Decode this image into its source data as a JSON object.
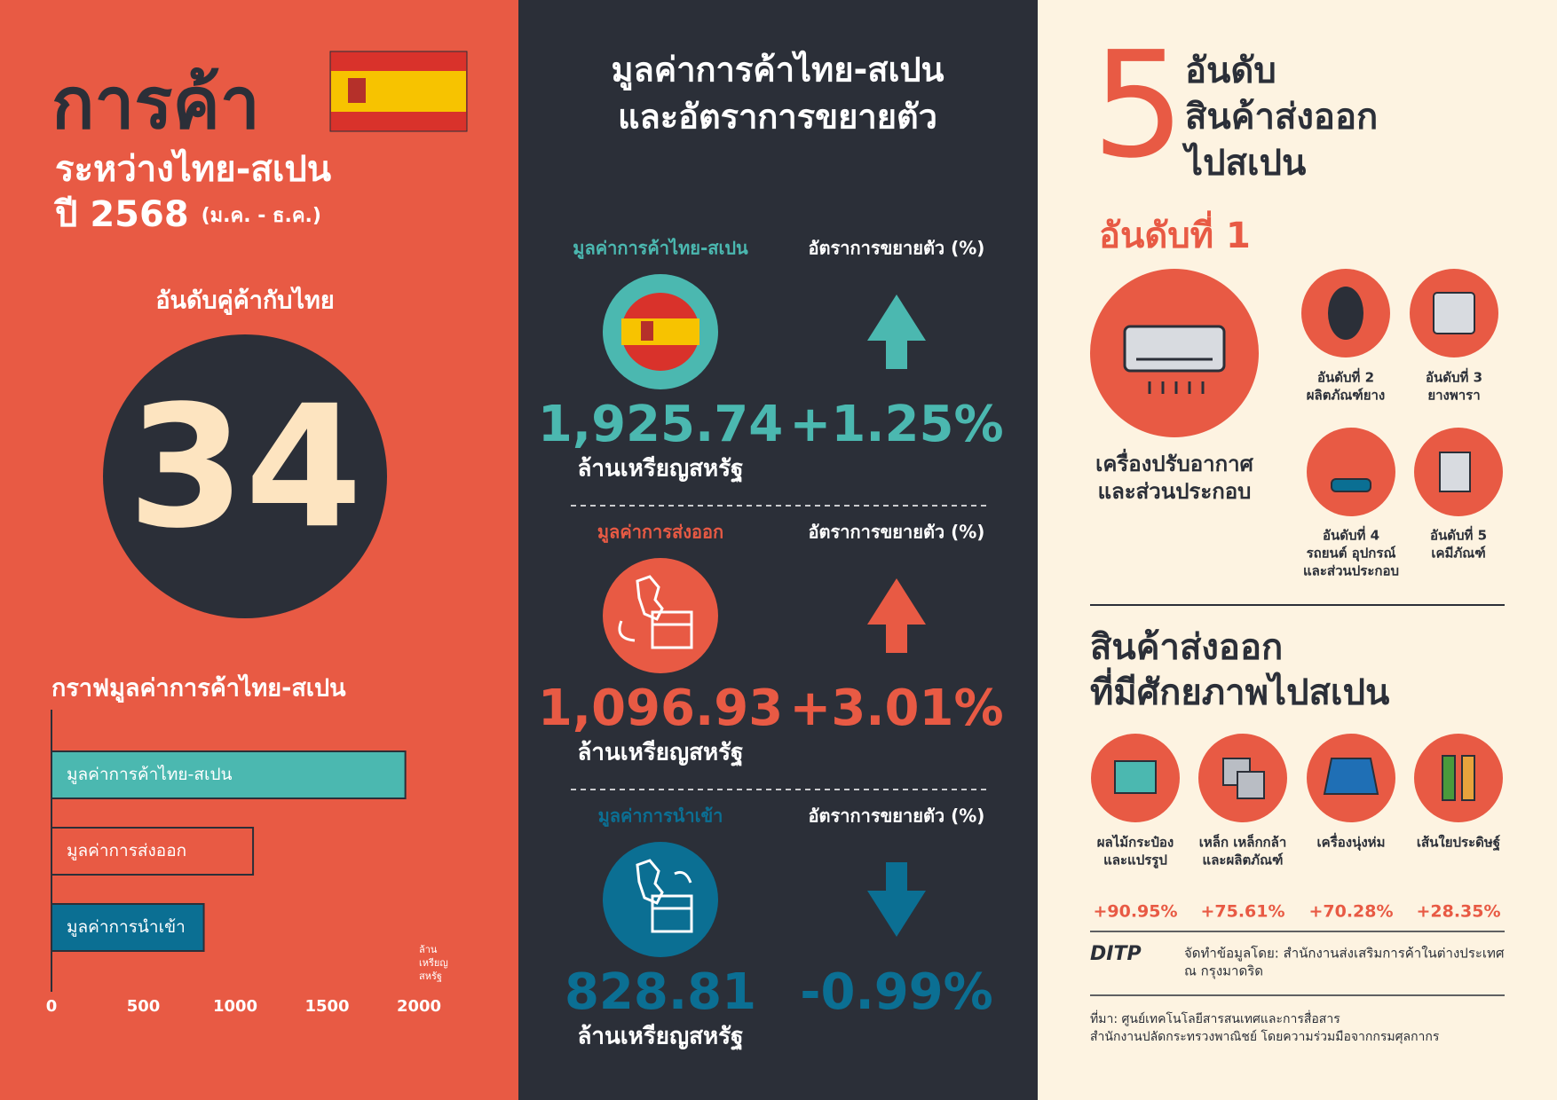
{
  "left": {
    "title": "การค้า",
    "subtitle": "ระหว่างไทย-สเปน",
    "year": "ปี 2568",
    "period": "(ม.ค. - ธ.ค.)",
    "rank_label": "อันดับคู่ค้ากับไทย",
    "rank": 34,
    "chart_data": {
      "type": "bar",
      "title": "กราฟมูลค่าการค้าไทย-สเปน",
      "categories": [
        "มูลค่าการค้าไทย-สเปน",
        "มูลค่าการส่งออก",
        "มูลค่าการนำเข้า"
      ],
      "values": [
        1925.74,
        1096.93,
        828.81
      ],
      "colors": [
        "#4bb8b0",
        "#e85a44",
        "#0b6f93"
      ],
      "xlim": [
        0,
        2000
      ],
      "xticks": [
        0,
        500,
        1000,
        1500,
        2000
      ],
      "unit": [
        "ล้าน",
        "เหรียญ",
        "สหรัฐ"
      ]
    }
  },
  "middle": {
    "title": [
      "มูลค่าการค้าไทย-สเปน",
      "และอัตราการขยายตัว"
    ],
    "sections": [
      {
        "label": "มูลค่าการค้าไทย-สเปน",
        "growth_label": "อัตราการขยายตัว (%)",
        "value": "1,925.74",
        "unit": "ล้านเหรียญสหรัฐ",
        "growth": "+1.25%"
      },
      {
        "label": "มูลค่าการส่งออก",
        "growth_label": "อัตราการขยายตัว (%)",
        "value": "1,096.93",
        "unit": "ล้านเหรียญสหรัฐ",
        "growth": "+3.01%"
      },
      {
        "label": "มูลค่าการนำเข้า",
        "growth_label": "อัตราการขยายตัว (%)",
        "value": "828.81",
        "unit": "ล้านเหรียญสหรัฐ",
        "growth": "-0.99%"
      }
    ]
  },
  "right": {
    "number": "5",
    "heading": [
      "อันดับ",
      "สินค้าส่งออก",
      "ไปสเปน"
    ],
    "top_label": "อันดับที่ 1",
    "top_item": [
      "เครื่องปรับอากาศ",
      "และส่วนประกอบ"
    ],
    "others": [
      {
        "rank": "อันดับที่ 2",
        "item": [
          "ผลิตภัณฑ์ยาง"
        ]
      },
      {
        "rank": "อันดับที่ 3",
        "item": [
          "ยางพารา"
        ]
      },
      {
        "rank": "อันดับที่ 4",
        "item": [
          "รถยนต์ อุปกรณ์",
          "และส่วนประกอบ"
        ]
      },
      {
        "rank": "อันดับที่ 5",
        "item": [
          "เคมีภัณฑ์"
        ]
      }
    ],
    "potential": {
      "title": [
        "สินค้าส่งออก",
        "ที่มีศักยภาพไปสเปน"
      ],
      "items": [
        {
          "name": [
            "ผลไม้กระป๋อง",
            "และแปรรูป"
          ],
          "growth": "+90.95%"
        },
        {
          "name": [
            "เหล็ก เหล็กกล้า",
            "และผลิตภัณฑ์"
          ],
          "growth": "+75.61%"
        },
        {
          "name": [
            "เครื่องนุ่งห่ม"
          ],
          "growth": "+70.28%"
        },
        {
          "name": [
            "เส้นใยประดิษฐ์"
          ],
          "growth": "+28.35%"
        }
      ]
    },
    "credit": {
      "logo": "DITP",
      "text": [
        "จัดทำข้อมูลโดย: สำนักงานส่งเสริมการค้าในต่างประเทศ",
        "ณ กรุงมาดริด"
      ]
    },
    "source": [
      "ที่มา: ศูนย์เทคโนโลยีสารสนเทศและการสื่อสาร",
      "สำนักงานปลัดกระทรวงพาณิชย์ โดยความร่วมมือจากกรมศุลกากร"
    ]
  }
}
